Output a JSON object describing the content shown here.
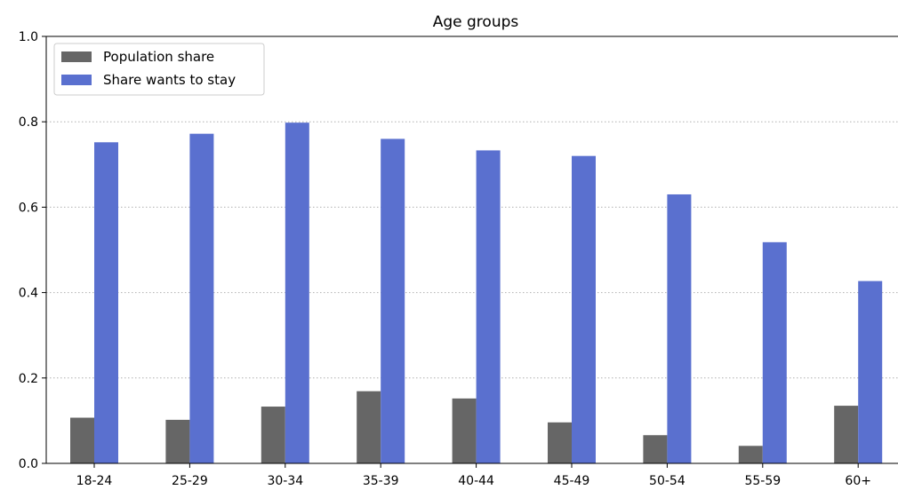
{
  "chart_data": {
    "type": "bar",
    "title": "Age groups",
    "xlabel": "",
    "ylabel": "",
    "categories": [
      "18-24",
      "25-29",
      "30-34",
      "35-39",
      "40-44",
      "45-49",
      "50-54",
      "55-59",
      "60+"
    ],
    "series": [
      {
        "name": "Population share",
        "color": "#666666",
        "values": [
          0.107,
          0.102,
          0.133,
          0.169,
          0.152,
          0.096,
          0.066,
          0.041,
          0.135
        ]
      },
      {
        "name": "Share wants to stay",
        "color": "#5a70cf",
        "values": [
          0.752,
          0.772,
          0.798,
          0.76,
          0.733,
          0.72,
          0.63,
          0.518,
          0.427
        ]
      }
    ],
    "ylim": [
      0,
      1.0
    ],
    "yticks": [
      "0.0",
      "0.2",
      "0.4",
      "0.6",
      "0.8",
      "1.0"
    ],
    "grid": "horizontal dotted",
    "legend_position": "top-left"
  }
}
